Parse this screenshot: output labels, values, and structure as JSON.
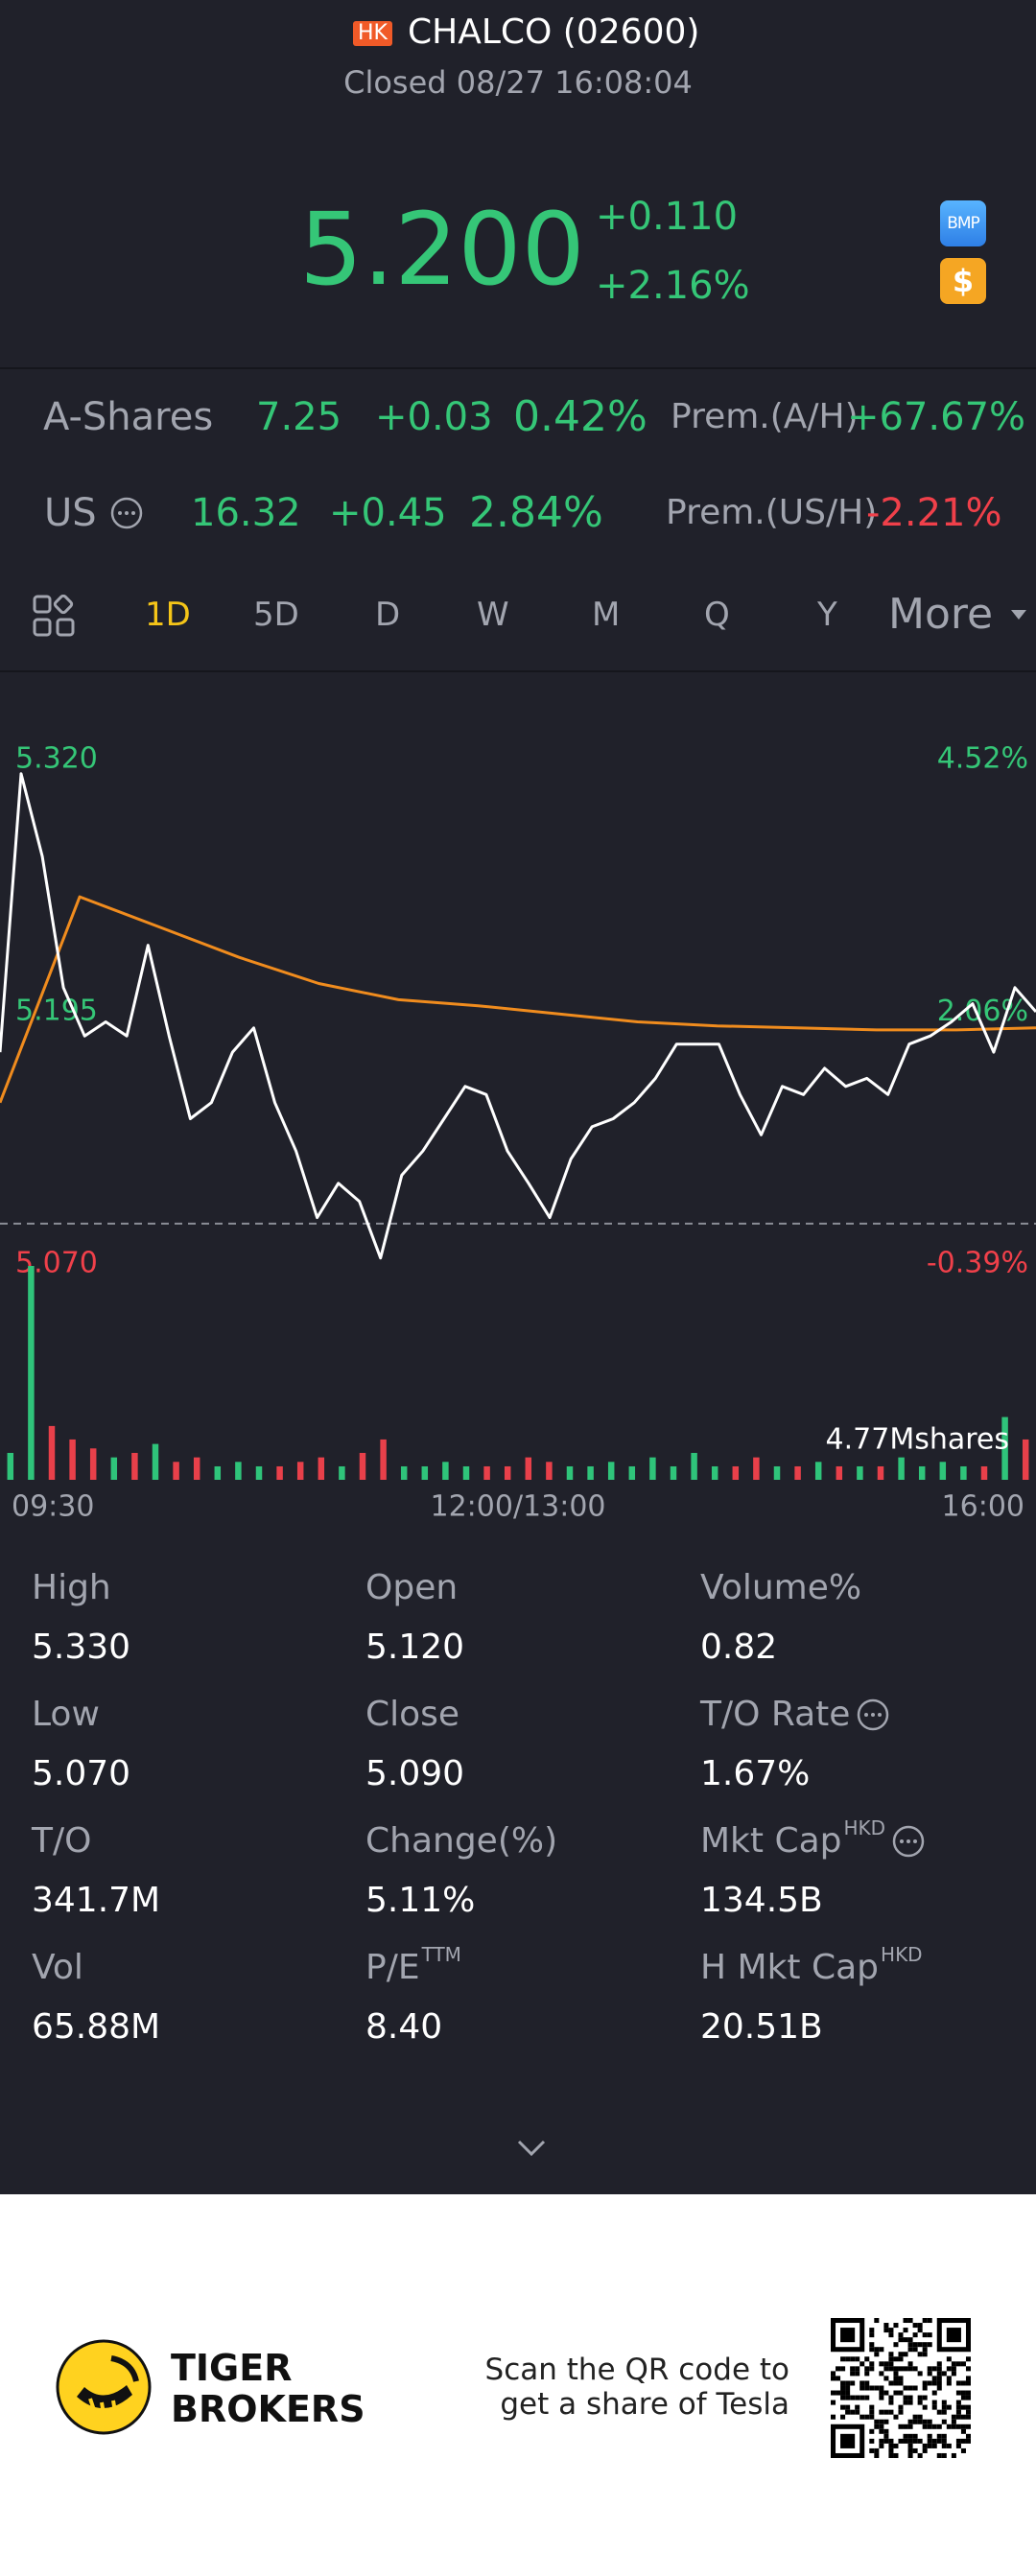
{
  "header": {
    "market": "HK",
    "title": "CHALCO (02600)",
    "subtitle": "Closed 08/27 16:08:04"
  },
  "quote": {
    "price": "5.200",
    "change": "+0.110",
    "change_pct": "+2.16%",
    "badges": [
      "BMP",
      "$"
    ]
  },
  "related": [
    {
      "label": "A-Shares",
      "price": "7.25",
      "change": "+0.03",
      "pct": "0.42%",
      "prem_label": "Prem.(A/H)",
      "prem": "+67.67%"
    },
    {
      "label": "US",
      "price": "16.32",
      "change": "+0.45",
      "pct": "2.84%",
      "prem_label": "Prem.(US/H)",
      "prem": "-2.21%"
    }
  ],
  "tabs": [
    "1D",
    "5D",
    "D",
    "W",
    "M",
    "Q",
    "Y",
    "More"
  ],
  "chart_data": {
    "type": "line",
    "series": [
      {
        "name": "Price",
        "color": "#ffffff",
        "values": [
          5.175,
          5.313,
          5.272,
          5.207,
          5.183,
          5.19,
          5.183,
          5.228,
          5.183,
          5.142,
          5.15,
          5.175,
          5.187,
          5.15,
          5.126,
          5.093,
          5.11,
          5.101,
          5.073,
          5.114,
          5.126,
          5.142,
          5.158,
          5.154,
          5.126,
          5.11,
          5.093,
          5.122,
          5.138,
          5.142,
          5.15,
          5.162,
          5.179,
          5.179,
          5.179,
          5.154,
          5.134,
          5.158,
          5.154,
          5.167,
          5.158,
          5.162,
          5.154,
          5.179,
          5.183,
          5.19,
          5.199,
          5.175,
          5.207,
          5.195
        ]
      },
      {
        "name": "Average",
        "color": "#f08c1e",
        "values": [
          5.15,
          5.252,
          5.237,
          5.222,
          5.209,
          5.201,
          5.198,
          5.194,
          5.19,
          5.188,
          5.187,
          5.186,
          5.186,
          5.187
        ]
      }
    ],
    "ylim": [
      5.07,
      5.32
    ],
    "yticks": [
      {
        "value": 5.32,
        "label": "5.320"
      },
      {
        "value": 5.195,
        "label": "5.195"
      },
      {
        "value": 5.07,
        "label": "5.070"
      }
    ],
    "y2lim": [
      -0.39,
      4.52
    ],
    "y2ticks": [
      {
        "value": 4.52,
        "label": "4.52%"
      },
      {
        "value": 2.06,
        "label": "2.06%"
      },
      {
        "value": -0.39,
        "label": "-0.39%"
      }
    ],
    "prev_close": 5.09,
    "x_labels": [
      "09:30",
      "12:00/13:00",
      "16:00"
    ],
    "volume": {
      "label": {
        "value": 4.77,
        "label": "4.77Mshares"
      },
      "vlim": [
        0,
        4.77
      ],
      "up_color": "#2fc47a",
      "down_color": "#e8404a",
      "values": [
        0.6,
        4.77,
        1.2,
        0.9,
        0.7,
        0.5,
        0.6,
        0.8,
        0.4,
        0.5,
        0.3,
        0.4,
        0.3,
        0.3,
        0.4,
        0.5,
        0.3,
        0.6,
        0.9,
        0.3,
        0.3,
        0.4,
        0.3,
        0.3,
        0.3,
        0.5,
        0.4,
        0.3,
        0.3,
        0.4,
        0.3,
        0.5,
        0.3,
        0.6,
        0.3,
        0.3,
        0.5,
        0.3,
        0.3,
        0.4,
        0.3,
        0.3,
        0.3,
        0.5,
        0.3,
        0.4,
        0.3,
        0.3,
        1.4,
        0.9
      ]
    },
    "grid": false
  },
  "stats": [
    {
      "label": "High",
      "value": "5.330"
    },
    {
      "label": "Open",
      "value": "5.120"
    },
    {
      "label": "Volume%",
      "value": "0.82"
    },
    {
      "label": "Low",
      "value": "5.070"
    },
    {
      "label": "Close",
      "value": "5.090"
    },
    {
      "label": "T/O Rate",
      "value": "1.67%",
      "info": true
    },
    {
      "label": "T/O",
      "value": "341.7M"
    },
    {
      "label": "Change(%)",
      "value": "5.11%"
    },
    {
      "label": "Mkt Cap",
      "sup": "HKD",
      "value": "134.5B",
      "info": true
    },
    {
      "label": "Vol",
      "value": "65.88M"
    },
    {
      "label": "P/E",
      "sup": "TTM",
      "value": "8.40"
    },
    {
      "label": "H Mkt Cap",
      "sup": "HKD",
      "value": "20.51B"
    }
  ],
  "footer": {
    "brand": [
      "TIGER",
      "BROKERS"
    ],
    "scan": [
      "Scan the QR code to",
      "get a share of Tesla"
    ]
  }
}
